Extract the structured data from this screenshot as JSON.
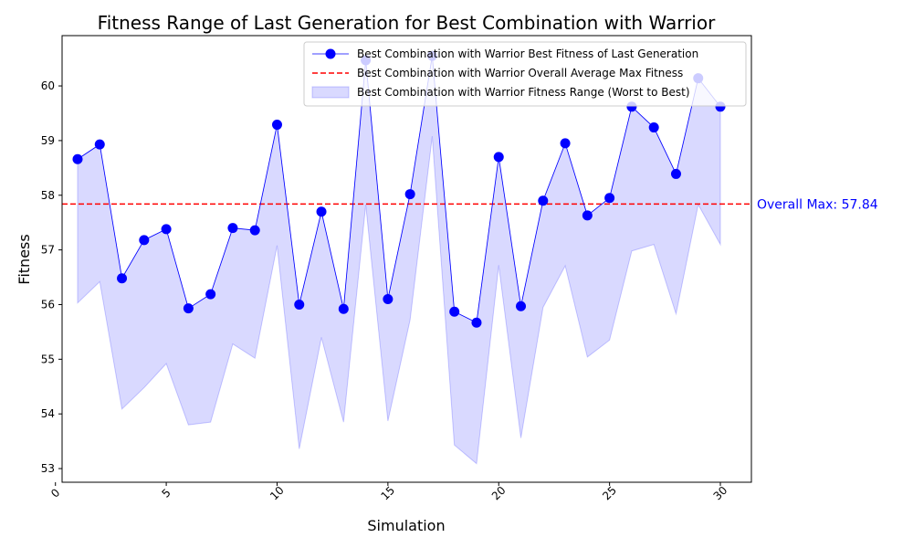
{
  "chart_data": {
    "type": "line",
    "title": "Fitness Range of Last Generation for Best Combination with Warrior",
    "xlabel": "Simulation",
    "ylabel": "Fitness",
    "xlim": [
      0.3,
      31.4
    ],
    "ylim": [
      52.75,
      60.92
    ],
    "x_ticks": [
      0,
      5,
      10,
      15,
      20,
      25,
      30
    ],
    "y_ticks": [
      53,
      54,
      55,
      56,
      57,
      58,
      59,
      60
    ],
    "x": [
      1,
      2,
      3,
      4,
      5,
      6,
      7,
      8,
      9,
      10,
      11,
      12,
      13,
      14,
      15,
      16,
      17,
      18,
      19,
      20,
      21,
      22,
      23,
      24,
      25,
      26,
      27,
      28,
      29,
      30
    ],
    "series": [
      {
        "name": "Best Combination with Warrior Best Fitness of Last Generation",
        "kind": "line-marker",
        "color": "#0000ff",
        "values": [
          58.66,
          58.93,
          56.48,
          57.18,
          57.38,
          55.93,
          56.19,
          57.4,
          57.36,
          59.29,
          56.0,
          57.7,
          55.92,
          60.47,
          56.1,
          58.02,
          60.55,
          55.87,
          55.67,
          58.7,
          55.97,
          57.9,
          58.95,
          57.63,
          57.95,
          59.62,
          59.24,
          58.39,
          60.14,
          59.62
        ]
      },
      {
        "name": "Best Combination with Warrior Fitness Range (Worst to Best)",
        "kind": "band",
        "color": "#0000ff",
        "lower": [
          56.03,
          56.42,
          54.09,
          54.48,
          54.92,
          53.8,
          53.85,
          55.28,
          55.02,
          57.08,
          53.36,
          55.4,
          53.85,
          57.83,
          53.87,
          55.72,
          59.08,
          53.43,
          53.09,
          56.72,
          53.56,
          55.95,
          56.71,
          55.04,
          55.35,
          56.98,
          57.1,
          55.83,
          57.83,
          57.1
        ],
        "upper": [
          58.66,
          58.93,
          56.48,
          57.18,
          57.38,
          55.93,
          56.19,
          57.4,
          57.36,
          59.29,
          56.0,
          57.7,
          55.92,
          60.47,
          56.1,
          58.02,
          60.55,
          55.87,
          55.67,
          58.7,
          55.97,
          57.9,
          58.95,
          57.63,
          57.95,
          59.62,
          59.24,
          58.39,
          60.14,
          59.62
        ]
      }
    ],
    "reference_line": {
      "name": "Best Combination with Warrior Overall Average Max Fitness",
      "value": 57.84,
      "color": "#ff0000",
      "style": "dashed",
      "annotation": "Overall Max: 57.84",
      "annotation_color": "#0000ff"
    },
    "legend": {
      "placement": "top-right",
      "entries": [
        "Best Combination with Warrior Best Fitness of Last Generation",
        "Best Combination with Warrior Overall Average Max Fitness",
        "Best Combination with Warrior Fitness Range (Worst to Best)"
      ]
    },
    "grid": false
  }
}
